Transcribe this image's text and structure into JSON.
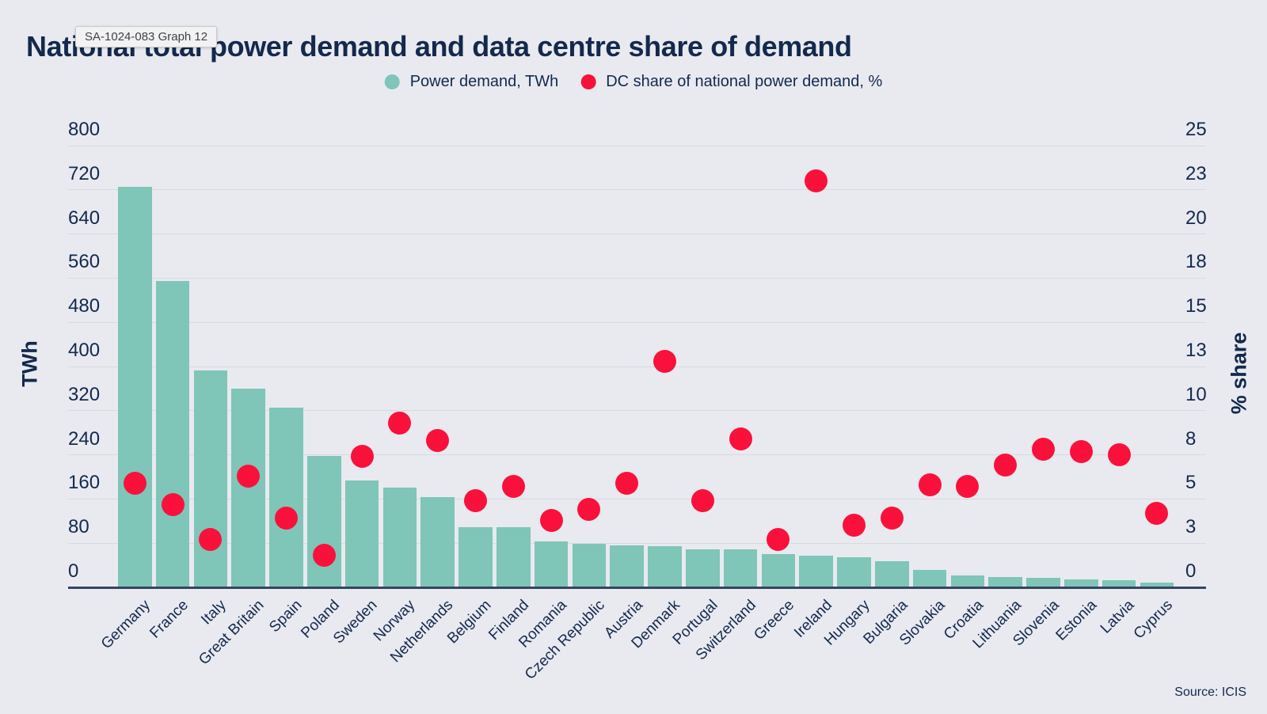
{
  "title": "National total power demand and data centre share of demand",
  "tooltip": {
    "text": "SA-1024-083 Graph 12"
  },
  "source": "Source: ICIS",
  "colors": {
    "background": "#e8eaef",
    "bar": "#7fc5b8",
    "dot": "#f9113c",
    "text": "#13294d",
    "gridline": "#d7dae1",
    "axis_line": "#33465f"
  },
  "chart_data": {
    "type": "bar",
    "title": "National total power demand and data centre share of demand",
    "grid": true,
    "legend_position": "top",
    "categories": [
      "Germany",
      "France",
      "Italy",
      "Great Britain",
      "Spain",
      "Poland",
      "Sweden",
      "Norway",
      "Netherlands",
      "Belgium",
      "Finland",
      "Romania",
      "Czech Republic",
      "Austria",
      "Denmark",
      "Portugal",
      "Switzerland",
      "Greece",
      "Ireland",
      "Hungary",
      "Bulgaria",
      "Slovakia",
      "Croatia",
      "Lithuania",
      "Slovenia",
      "Estonia",
      "Latvia",
      "Cyprus"
    ],
    "series": [
      {
        "name": "Power demand, TWh",
        "type": "bar",
        "axis": "left",
        "values": [
          726,
          555,
          393,
          360,
          326,
          238,
          194,
          180,
          164,
          109,
          109,
          83,
          79,
          76,
          74,
          69,
          69,
          60,
          58,
          55,
          47,
          32,
          21,
          19,
          17,
          15,
          13,
          8
        ]
      },
      {
        "name": "DC share of national power demand, %",
        "type": "scatter",
        "axis": "right",
        "values": [
          5.9,
          4.7,
          2.7,
          6.3,
          3.9,
          1.8,
          7.4,
          9.3,
          8.3,
          4.9,
          5.7,
          3.8,
          4.4,
          5.9,
          12.8,
          4.9,
          8.4,
          2.7,
          23.0,
          3.5,
          3.9,
          5.8,
          5.7,
          6.9,
          7.8,
          7.7,
          7.5,
          4.2
        ]
      }
    ],
    "left_axis": {
      "label": "TWh",
      "range": [
        0,
        800
      ],
      "ticks": [
        "0",
        "80",
        "160",
        "240",
        "320",
        "400",
        "480",
        "560",
        "640",
        "720",
        "800"
      ]
    },
    "right_axis": {
      "label": "% share",
      "range": [
        0,
        25
      ],
      "ticks": [
        "0",
        "3",
        "5",
        "8",
        "10",
        "13",
        "15",
        "18",
        "20",
        "23",
        "25"
      ]
    }
  }
}
